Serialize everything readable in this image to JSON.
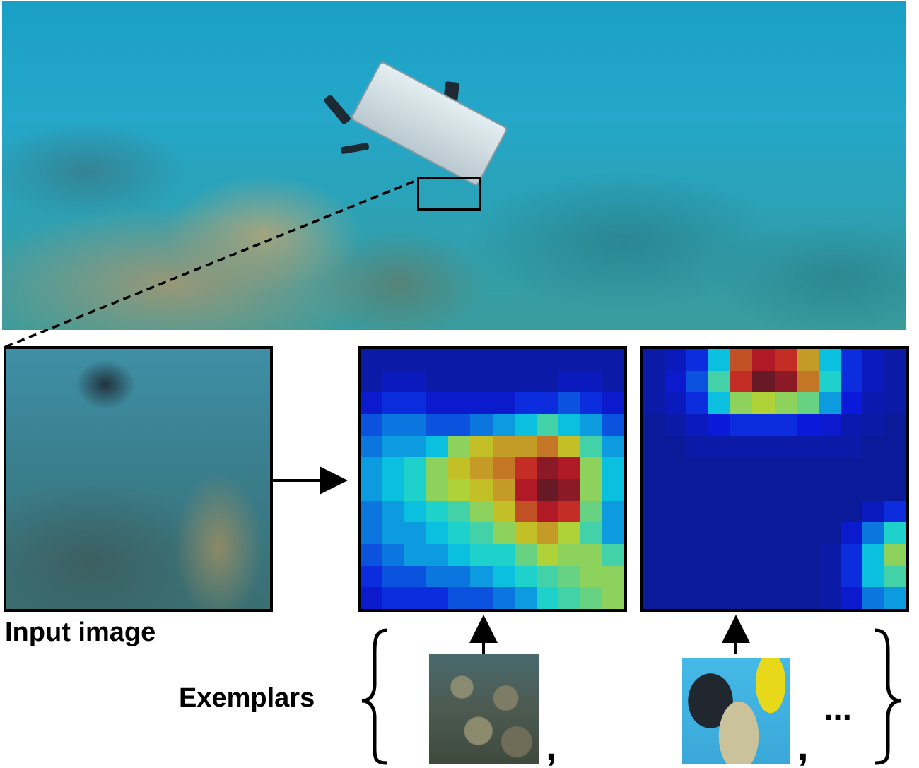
{
  "labels": {
    "input_image": "Input image",
    "exemplars": "Exemplars",
    "separator": ",",
    "ellipsis": "..."
  },
  "heatmaps": [
    {
      "name": "heatmap-coral",
      "grid": [
        [
          0.05,
          0.05,
          0.05,
          0.05,
          0.05,
          0.05,
          0.05,
          0.05,
          0.05,
          0.05,
          0.05,
          0.05
        ],
        [
          0.05,
          0.08,
          0.08,
          0.05,
          0.05,
          0.05,
          0.05,
          0.05,
          0.05,
          0.08,
          0.08,
          0.05
        ],
        [
          0.1,
          0.15,
          0.15,
          0.1,
          0.1,
          0.1,
          0.1,
          0.15,
          0.15,
          0.2,
          0.15,
          0.1
        ],
        [
          0.2,
          0.25,
          0.25,
          0.2,
          0.2,
          0.25,
          0.3,
          0.35,
          0.45,
          0.35,
          0.3,
          0.2
        ],
        [
          0.25,
          0.3,
          0.3,
          0.35,
          0.55,
          0.65,
          0.7,
          0.7,
          0.75,
          0.65,
          0.45,
          0.3
        ],
        [
          0.3,
          0.35,
          0.4,
          0.55,
          0.65,
          0.7,
          0.75,
          0.85,
          0.95,
          0.9,
          0.55,
          0.35
        ],
        [
          0.3,
          0.35,
          0.4,
          0.55,
          0.6,
          0.65,
          0.7,
          0.9,
          1.0,
          0.95,
          0.55,
          0.35
        ],
        [
          0.25,
          0.3,
          0.35,
          0.4,
          0.45,
          0.55,
          0.65,
          0.8,
          0.9,
          0.85,
          0.5,
          0.3
        ],
        [
          0.25,
          0.3,
          0.3,
          0.35,
          0.4,
          0.45,
          0.55,
          0.65,
          0.7,
          0.6,
          0.45,
          0.3
        ],
        [
          0.2,
          0.25,
          0.3,
          0.3,
          0.35,
          0.4,
          0.4,
          0.5,
          0.6,
          0.55,
          0.55,
          0.45
        ],
        [
          0.15,
          0.2,
          0.2,
          0.25,
          0.25,
          0.3,
          0.35,
          0.4,
          0.45,
          0.5,
          0.55,
          0.55
        ],
        [
          0.1,
          0.15,
          0.15,
          0.15,
          0.2,
          0.2,
          0.25,
          0.3,
          0.4,
          0.45,
          0.5,
          0.55
        ]
      ]
    },
    {
      "name": "heatmap-diver",
      "grid": [
        [
          0.05,
          0.08,
          0.15,
          0.35,
          0.8,
          0.9,
          0.85,
          0.7,
          0.35,
          0.15,
          0.08,
          0.05
        ],
        [
          0.05,
          0.1,
          0.2,
          0.45,
          0.85,
          1.0,
          0.95,
          0.75,
          0.4,
          0.15,
          0.08,
          0.05
        ],
        [
          0.05,
          0.08,
          0.15,
          0.35,
          0.55,
          0.6,
          0.55,
          0.5,
          0.3,
          0.12,
          0.06,
          0.05
        ],
        [
          0.03,
          0.05,
          0.08,
          0.12,
          0.15,
          0.15,
          0.15,
          0.12,
          0.1,
          0.06,
          0.05,
          0.03
        ],
        [
          0.03,
          0.03,
          0.05,
          0.05,
          0.05,
          0.05,
          0.05,
          0.05,
          0.05,
          0.05,
          0.03,
          0.03
        ],
        [
          0.03,
          0.03,
          0.03,
          0.03,
          0.03,
          0.03,
          0.03,
          0.03,
          0.03,
          0.03,
          0.03,
          0.03
        ],
        [
          0.03,
          0.03,
          0.03,
          0.03,
          0.03,
          0.03,
          0.03,
          0.03,
          0.03,
          0.03,
          0.03,
          0.03
        ],
        [
          0.03,
          0.03,
          0.03,
          0.03,
          0.03,
          0.03,
          0.03,
          0.03,
          0.03,
          0.03,
          0.08,
          0.15
        ],
        [
          0.03,
          0.03,
          0.03,
          0.03,
          0.03,
          0.03,
          0.03,
          0.03,
          0.03,
          0.1,
          0.25,
          0.4
        ],
        [
          0.03,
          0.03,
          0.03,
          0.03,
          0.03,
          0.03,
          0.03,
          0.03,
          0.05,
          0.15,
          0.35,
          0.55
        ],
        [
          0.03,
          0.03,
          0.03,
          0.03,
          0.03,
          0.03,
          0.03,
          0.03,
          0.05,
          0.15,
          0.35,
          0.45
        ],
        [
          0.03,
          0.03,
          0.03,
          0.03,
          0.03,
          0.03,
          0.03,
          0.03,
          0.05,
          0.1,
          0.25,
          0.3
        ]
      ]
    }
  ],
  "colors": {
    "arrow": "#000000",
    "frame": "#000000"
  }
}
